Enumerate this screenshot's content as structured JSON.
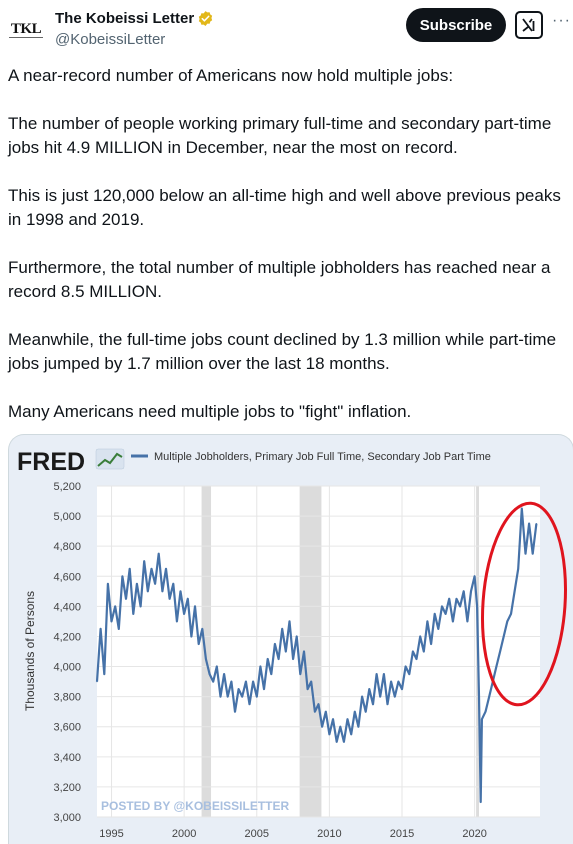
{
  "account": {
    "display_name": "The Kobeissi Letter",
    "handle": "@KobeissiLetter",
    "avatar_text": "TKL"
  },
  "actions": {
    "subscribe_label": "Subscribe",
    "more_label": "···"
  },
  "tweet": {
    "paragraphs": [
      "A near-record number of Americans now hold multiple jobs:",
      "The number of people working primary full-time and secondary part-time jobs hit 4.9 MILLION in December, near the most on record.",
      "This is just 120,000 below an all-time high and well above previous peaks in 1998 and 2019.",
      "Furthermore, the total number of multiple jobholders has reached near a record 8.5 MILLION.",
      "Meanwhile, the full-time jobs count declined by 1.3 million while part-time jobs jumped by 1.7 million over the last 18 months.",
      "Many Americans need multiple jobs to \"fight\" inflation."
    ]
  },
  "colors": {
    "line": "#4672a8",
    "recession": "#dcdcdc",
    "circle": "#e0141e",
    "panel": "#e8eef6"
  },
  "chart_data": {
    "type": "line",
    "logo": "FRED",
    "title": "Multiple Jobholders, Primary Job Full Time, Secondary Job Part Time",
    "ylabel": "Thousands of Persons",
    "watermark": "POSTED BY @KOBEISSILETTER",
    "ylim": [
      3000,
      5200
    ],
    "yticks": [
      "3,000",
      "3,200",
      "3,400",
      "3,600",
      "3,800",
      "4,000",
      "4,200",
      "4,400",
      "4,600",
      "4,800",
      "5,000",
      "5,200"
    ],
    "xticks": [
      "1995",
      "2000",
      "2005",
      "2010",
      "2015",
      "2020"
    ],
    "xlim": [
      1994,
      2024.5
    ],
    "recessions": [
      [
        2001.2,
        2001.85
      ],
      [
        2007.95,
        2009.45
      ],
      [
        2020.1,
        2020.3
      ]
    ],
    "series": [
      {
        "x": [
          1994.0,
          1994.25,
          1994.5,
          1994.75,
          1995.0,
          1995.25,
          1995.5,
          1995.75,
          1996.0,
          1996.25,
          1996.5,
          1996.75,
          1997.0,
          1997.25,
          1997.5,
          1997.75,
          1998.0,
          1998.25,
          1998.5,
          1998.75,
          1999.0,
          1999.25,
          1999.5,
          1999.75,
          2000.0,
          2000.25,
          2000.5,
          2000.75,
          2001.0,
          2001.25,
          2001.5,
          2001.75,
          2002.0,
          2002.25,
          2002.5,
          2002.75,
          2003.0,
          2003.25,
          2003.5,
          2003.75,
          2004.0,
          2004.25,
          2004.5,
          2004.75,
          2005.0,
          2005.25,
          2005.5,
          2005.75,
          2006.0,
          2006.25,
          2006.5,
          2006.75,
          2007.0,
          2007.25,
          2007.5,
          2007.75,
          2008.0,
          2008.25,
          2008.5,
          2008.75,
          2009.0,
          2009.25,
          2009.5,
          2009.75,
          2010.0,
          2010.25,
          2010.5,
          2010.75,
          2011.0,
          2011.25,
          2011.5,
          2011.75,
          2012.0,
          2012.25,
          2012.5,
          2012.75,
          2013.0,
          2013.25,
          2013.5,
          2013.75,
          2014.0,
          2014.25,
          2014.5,
          2014.75,
          2015.0,
          2015.25,
          2015.5,
          2015.75,
          2016.0,
          2016.25,
          2016.5,
          2016.75,
          2017.0,
          2017.25,
          2017.5,
          2017.75,
          2018.0,
          2018.25,
          2018.5,
          2018.75,
          2019.0,
          2019.25,
          2019.5,
          2019.75,
          2020.0,
          2020.17,
          2020.3,
          2020.42,
          2020.5,
          2020.75,
          2021.0,
          2021.25,
          2021.5,
          2021.75,
          2022.0,
          2022.25,
          2022.5,
          2022.75,
          2023.0,
          2023.25,
          2023.5,
          2023.75,
          2024.0,
          2024.25
        ],
        "values": [
          3900,
          4250,
          3950,
          4550,
          4300,
          4400,
          4250,
          4600,
          4450,
          4650,
          4350,
          4550,
          4400,
          4700,
          4500,
          4650,
          4550,
          4750,
          4500,
          4650,
          4450,
          4550,
          4300,
          4500,
          4350,
          4450,
          4200,
          4400,
          4150,
          4250,
          4050,
          3950,
          3900,
          4000,
          3800,
          3950,
          3800,
          3900,
          3700,
          3850,
          3800,
          3900,
          3750,
          3900,
          3800,
          4000,
          3850,
          4050,
          3950,
          4150,
          4050,
          4250,
          4100,
          4300,
          4050,
          4200,
          3950,
          4100,
          3850,
          3900,
          3700,
          3750,
          3600,
          3700,
          3550,
          3650,
          3500,
          3600,
          3500,
          3650,
          3550,
          3700,
          3600,
          3800,
          3700,
          3850,
          3750,
          3950,
          3800,
          3950,
          3750,
          3900,
          3800,
          3900,
          3850,
          4000,
          3950,
          4100,
          4050,
          4200,
          4100,
          4300,
          4150,
          4350,
          4250,
          4400,
          4350,
          4450,
          4300,
          4450,
          4400,
          4500,
          4300,
          4500,
          4600,
          4400,
          3800,
          3100,
          3650,
          3700,
          3800,
          3900,
          4000,
          4100,
          4200,
          4300,
          4350,
          4500,
          4650,
          5050,
          4750,
          4950,
          4750,
          4950
        ]
      }
    ]
  }
}
